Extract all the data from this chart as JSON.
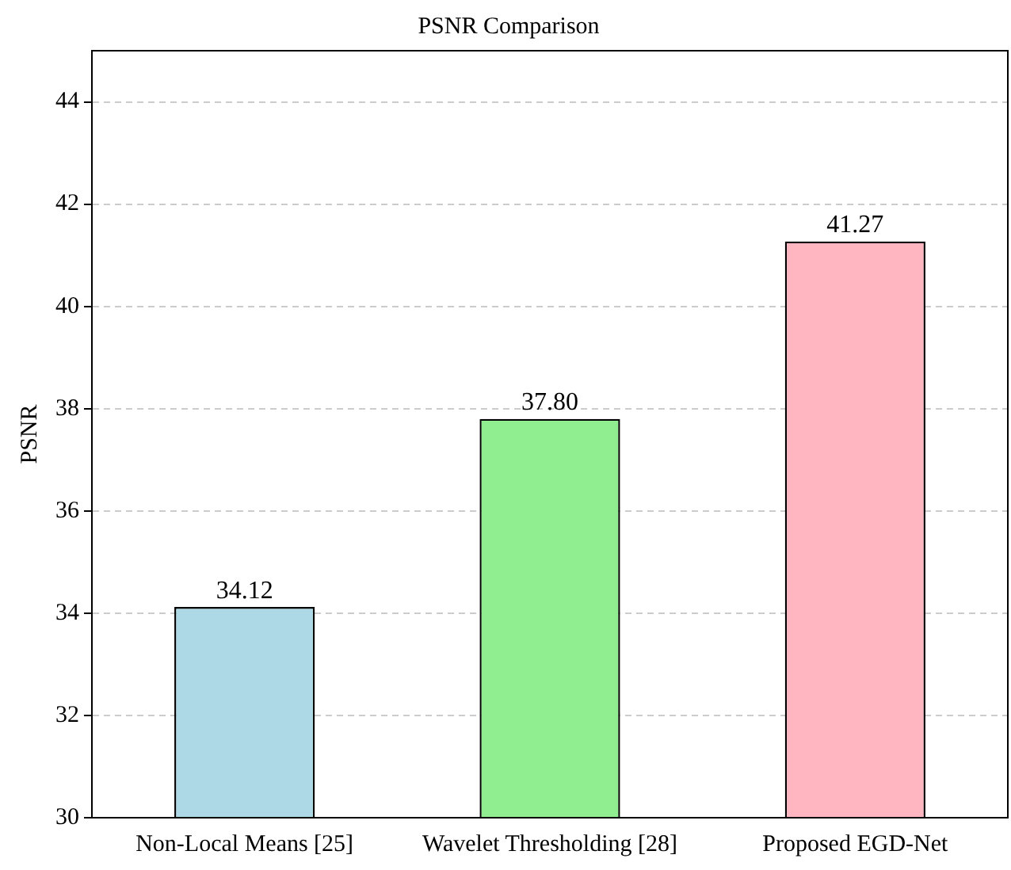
{
  "chart_data": {
    "type": "bar",
    "title": "PSNR Comparison",
    "ylabel": "PSNR",
    "categories": [
      "Non-Local Means [25]",
      "Wavelet Thresholding [28]",
      "Proposed EGD-Net"
    ],
    "values": [
      34.12,
      37.8,
      41.27
    ],
    "colors": [
      "#add8e6",
      "#90ee90",
      "#ffb6c1"
    ],
    "value_labels": [
      "34.12",
      "37.80",
      "41.27"
    ],
    "ylim": [
      30,
      45
    ],
    "yticks": [
      30,
      32,
      34,
      36,
      38,
      40,
      42,
      44
    ],
    "grid": "y",
    "line_style": "dashed"
  }
}
